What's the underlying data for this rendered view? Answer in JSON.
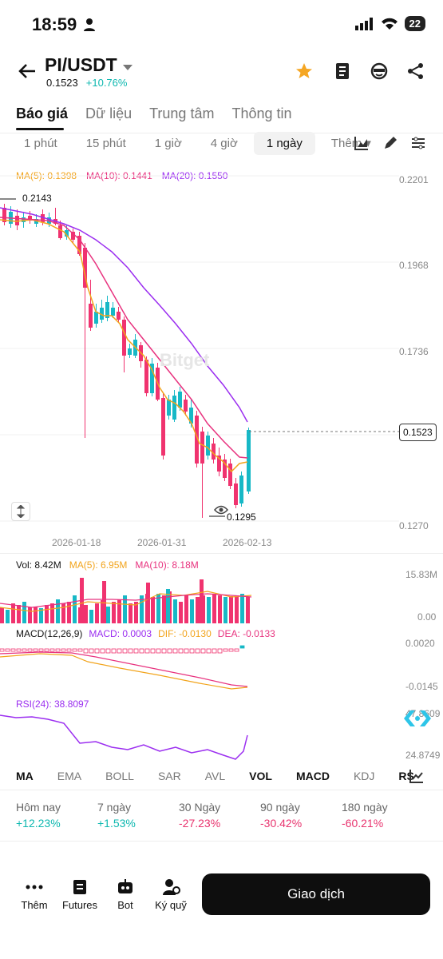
{
  "status": {
    "time": "18:59",
    "battery": "22"
  },
  "header": {
    "pair": "PI/USDT",
    "price": "0.1523",
    "change": "+10.76%"
  },
  "tabs": [
    "Báo giá",
    "Dữ liệu",
    "Trung tâm",
    "Thông tin"
  ],
  "intervals": [
    "1 phút",
    "15 phút",
    "1 giờ",
    "4 giờ",
    "1 ngày",
    "Thêm"
  ],
  "ma": {
    "ma5": "MA(5): 0.1398",
    "ma10": "MA(10): 0.1441",
    "ma20": "MA(20): 0.1550"
  },
  "price_axis": [
    "0.2201",
    "0.1968",
    "0.1736",
    "0.1270"
  ],
  "current_price_tag": "0.1523",
  "high_label": "0.2143",
  "low_label": "0.1295",
  "watermark": "Bitget",
  "dates": [
    "2026-01-18",
    "2026-01-31",
    "2026-02-13"
  ],
  "vol": {
    "vol": "Vol: 8.42M",
    "ma5": "MA(5): 6.95M",
    "ma10": "MA(10): 8.18M",
    "axis_top": "15.83M",
    "axis_bottom": "0.00"
  },
  "macd": {
    "label": "MACD(12,26,9)",
    "macd": "MACD: 0.0003",
    "dif": "DIF: -0.0130",
    "dea": "DEA: -0.0133",
    "axis_top": "0.0020",
    "axis_bottom": "-0.0145"
  },
  "rsi": {
    "label": "RSI(24): 38.8097",
    "axis_top": "47.8609",
    "axis_bottom": "24.8749"
  },
  "indicator_tabs": [
    "MA",
    "EMA",
    "BOLL",
    "SAR",
    "AVL",
    "VOL",
    "MACD",
    "KDJ",
    "RS"
  ],
  "performance": [
    {
      "label": "Hôm nay",
      "value": "+12.23%",
      "color": "#0eb8b0"
    },
    {
      "label": "7 ngày",
      "value": "+1.53%",
      "color": "#0eb8b0"
    },
    {
      "label": "30 Ngày",
      "value": "-27.23%",
      "color": "#e8336e"
    },
    {
      "label": "90 ngày",
      "value": "-30.42%",
      "color": "#e8336e"
    },
    {
      "label": "180 ngày",
      "value": "-60.21%",
      "color": "#e8336e"
    }
  ],
  "bottom_nav": [
    "Thêm",
    "Futures",
    "Bot",
    "Ký quỹ"
  ],
  "trade_button": "Giao dịch"
}
